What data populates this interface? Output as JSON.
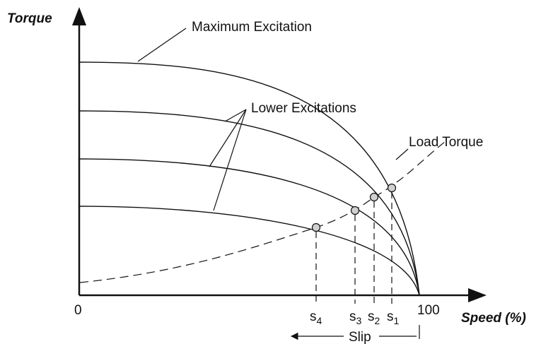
{
  "axes": {
    "y_label": "Torque",
    "x_label": "Speed (%)",
    "x_zero": "0",
    "x_hundred": "100"
  },
  "labels": {
    "maximum_excitation": "Maximum Excitation",
    "lower_excitations": "Lower Excitations",
    "load_torque": "Load Torque",
    "slip": "Slip"
  },
  "slip_markers": [
    {
      "base": "s",
      "sub": "4"
    },
    {
      "base": "s",
      "sub": "3"
    },
    {
      "base": "s",
      "sub": "2"
    },
    {
      "base": "s",
      "sub": "1"
    }
  ]
}
